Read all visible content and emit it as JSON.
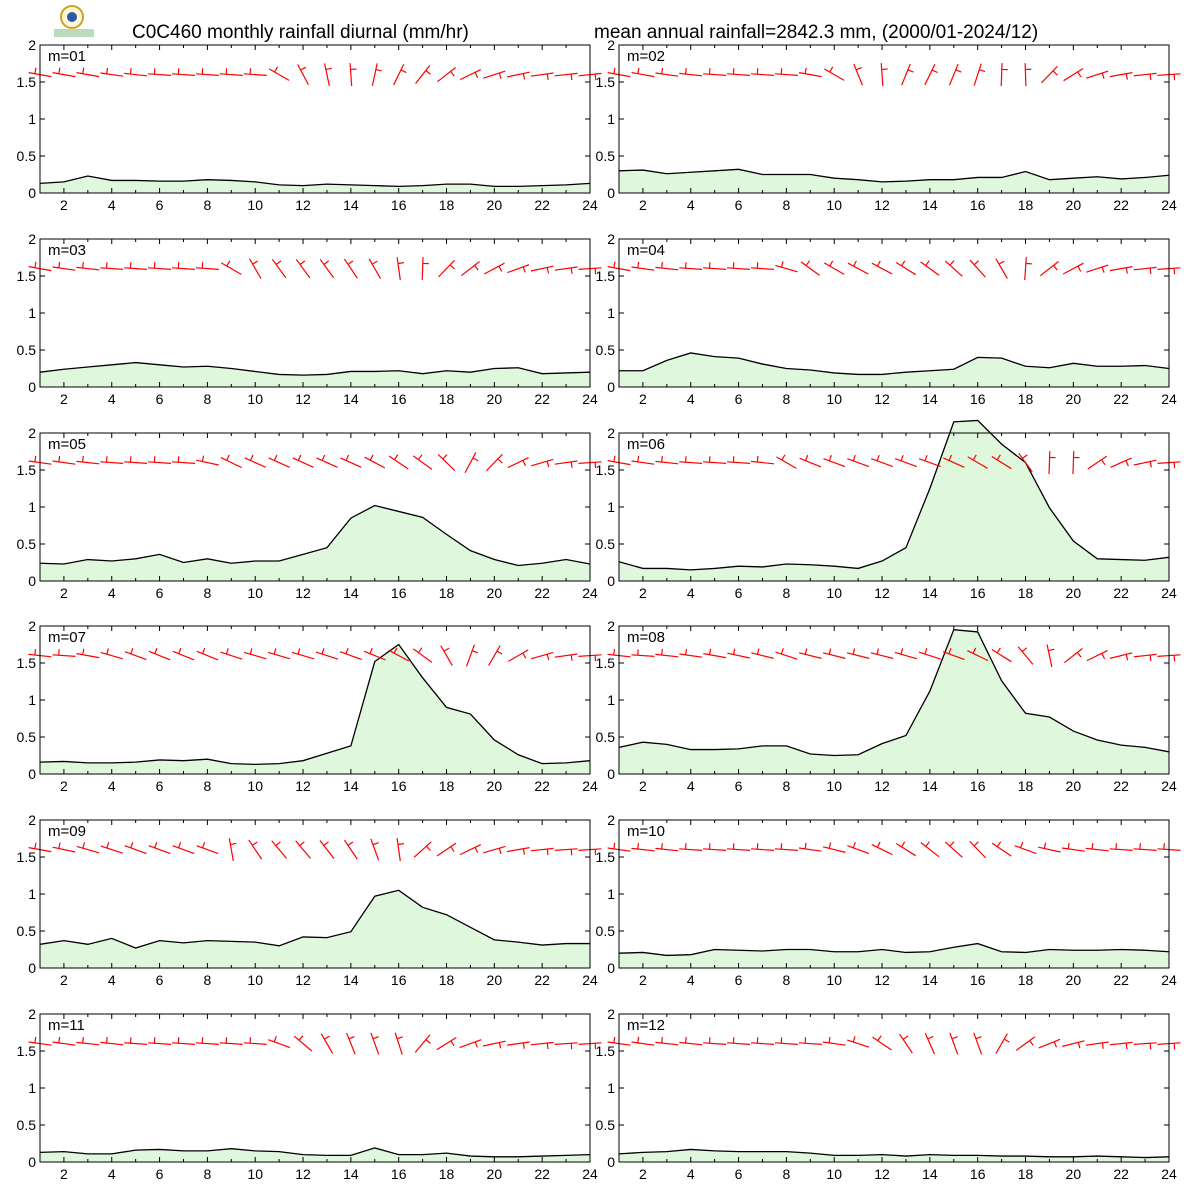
{
  "header": {
    "title_left": "C0C460 monthly rainfall diurnal (mm/hr)",
    "title_right": "mean annual rainfall=2842.3 mm, (2000/01-2024/12)"
  },
  "colors": {
    "fill": "#dff7dc",
    "line": "#000000",
    "wind": "#ff0000",
    "logo_ring": "#c9a227",
    "logo_blue": "#2a5aa8",
    "logo_green": "#3b9a3b"
  },
  "chart_data": {
    "type": "area",
    "ylim": [
      0,
      2
    ],
    "y_ticks": [
      "0",
      "0.5",
      "1",
      "1.5",
      "2"
    ],
    "xlim": [
      1,
      24
    ],
    "x_ticks": [
      "2",
      "4",
      "6",
      "8",
      "10",
      "12",
      "14",
      "16",
      "18",
      "20",
      "22",
      "24"
    ],
    "hours": [
      1,
      2,
      3,
      4,
      5,
      6,
      7,
      8,
      9,
      10,
      11,
      12,
      13,
      14,
      15,
      16,
      17,
      18,
      19,
      20,
      21,
      22,
      23,
      24
    ],
    "wind_glyph_level": 1.6,
    "panels": [
      {
        "label": "m=01",
        "values": [
          0.13,
          0.15,
          0.23,
          0.17,
          0.17,
          0.16,
          0.16,
          0.18,
          0.17,
          0.15,
          0.11,
          0.1,
          0.12,
          0.11,
          0.1,
          0.09,
          0.1,
          0.12,
          0.12,
          0.09,
          0.09,
          0.1,
          0.11,
          0.13
        ],
        "wind_dir": [
          -80,
          -80,
          -80,
          -82,
          -84,
          -86,
          -86,
          -86,
          -86,
          -86,
          -60,
          -28,
          -12,
          -4,
          12,
          26,
          38,
          52,
          64,
          72,
          78,
          82,
          84,
          84
        ]
      },
      {
        "label": "m=02",
        "values": [
          0.3,
          0.31,
          0.26,
          0.28,
          0.3,
          0.32,
          0.25,
          0.25,
          0.25,
          0.2,
          0.18,
          0.15,
          0.16,
          0.18,
          0.18,
          0.21,
          0.21,
          0.29,
          0.18,
          0.2,
          0.22,
          0.19,
          0.21,
          0.24
        ],
        "wind_dir": [
          -80,
          -80,
          -82,
          -84,
          -86,
          -86,
          -86,
          -86,
          -80,
          -60,
          -22,
          -4,
          22,
          26,
          22,
          18,
          2,
          -2,
          44,
          58,
          72,
          80,
          84,
          86
        ]
      },
      {
        "label": "m=03",
        "values": [
          0.2,
          0.24,
          0.27,
          0.3,
          0.33,
          0.3,
          0.27,
          0.28,
          0.25,
          0.21,
          0.17,
          0.16,
          0.17,
          0.21,
          0.21,
          0.22,
          0.18,
          0.22,
          0.2,
          0.25,
          0.26,
          0.18,
          0.19,
          0.2
        ],
        "wind_dir": [
          -80,
          -82,
          -84,
          -86,
          -86,
          -86,
          -86,
          -86,
          -60,
          -30,
          -36,
          -36,
          -36,
          -34,
          -30,
          -8,
          2,
          44,
          52,
          62,
          70,
          78,
          82,
          86
        ]
      },
      {
        "label": "m=04",
        "values": [
          0.22,
          0.22,
          0.36,
          0.46,
          0.41,
          0.39,
          0.31,
          0.25,
          0.23,
          0.19,
          0.17,
          0.17,
          0.2,
          0.22,
          0.24,
          0.4,
          0.39,
          0.28,
          0.26,
          0.32,
          0.28,
          0.28,
          0.29,
          0.25
        ],
        "wind_dir": [
          -80,
          -82,
          -84,
          -86,
          -86,
          -86,
          -86,
          -74,
          -54,
          -60,
          -62,
          -62,
          -58,
          -54,
          -48,
          -42,
          -30,
          4,
          52,
          62,
          72,
          80,
          84,
          86
        ]
      },
      {
        "label": "m=05",
        "values": [
          0.24,
          0.23,
          0.29,
          0.27,
          0.3,
          0.36,
          0.25,
          0.3,
          0.24,
          0.27,
          0.27,
          0.36,
          0.45,
          0.85,
          1.02,
          0.94,
          0.86,
          0.63,
          0.41,
          0.29,
          0.21,
          0.24,
          0.29,
          0.23
        ],
        "wind_dir": [
          -82,
          -82,
          -84,
          -86,
          -86,
          -86,
          -86,
          -78,
          -64,
          -66,
          -66,
          -66,
          -66,
          -66,
          -62,
          -56,
          -54,
          -46,
          28,
          44,
          64,
          74,
          82,
          86
        ]
      },
      {
        "label": "m=06",
        "values": [
          0.26,
          0.17,
          0.17,
          0.15,
          0.17,
          0.2,
          0.19,
          0.23,
          0.22,
          0.2,
          0.17,
          0.27,
          0.45,
          1.25,
          2.15,
          2.17,
          1.85,
          1.6,
          0.99,
          0.54,
          0.3,
          0.29,
          0.28,
          0.32
        ],
        "wind_dir": [
          -80,
          -82,
          -84,
          -86,
          -86,
          -86,
          -84,
          -60,
          -68,
          -70,
          -70,
          -70,
          -70,
          -70,
          -66,
          -60,
          -58,
          -36,
          2,
          2,
          56,
          66,
          78,
          86
        ]
      },
      {
        "label": "m=07",
        "values": [
          0.16,
          0.17,
          0.15,
          0.15,
          0.16,
          0.19,
          0.18,
          0.2,
          0.14,
          0.13,
          0.14,
          0.18,
          0.28,
          0.38,
          1.52,
          1.75,
          1.3,
          0.9,
          0.81,
          0.46,
          0.26,
          0.14,
          0.15,
          0.18
        ],
        "wind_dir": [
          -84,
          -86,
          -80,
          -74,
          -70,
          -68,
          -68,
          -68,
          -72,
          -74,
          -74,
          -74,
          -72,
          -70,
          -68,
          -62,
          -54,
          -30,
          20,
          30,
          60,
          74,
          82,
          86
        ]
      },
      {
        "label": "m=08",
        "values": [
          0.36,
          0.43,
          0.4,
          0.33,
          0.33,
          0.34,
          0.38,
          0.38,
          0.27,
          0.25,
          0.26,
          0.41,
          0.52,
          1.12,
          1.95,
          1.92,
          1.26,
          0.82,
          0.77,
          0.58,
          0.46,
          0.39,
          0.36,
          0.3
        ],
        "wind_dir": [
          -84,
          -86,
          -84,
          -82,
          -80,
          -78,
          -76,
          -72,
          -76,
          -76,
          -76,
          -76,
          -74,
          -72,
          -70,
          -64,
          -58,
          -40,
          -12,
          52,
          64,
          76,
          84,
          86
        ]
      },
      {
        "label": "m=09",
        "values": [
          0.32,
          0.37,
          0.32,
          0.4,
          0.27,
          0.37,
          0.34,
          0.37,
          0.36,
          0.35,
          0.3,
          0.42,
          0.41,
          0.49,
          0.97,
          1.05,
          0.82,
          0.72,
          0.55,
          0.38,
          0.35,
          0.31,
          0.33,
          0.33
        ],
        "wind_dir": [
          -80,
          -78,
          -74,
          -72,
          -70,
          -70,
          -70,
          -70,
          -10,
          -34,
          -40,
          -40,
          -38,
          -34,
          -20,
          -8,
          48,
          56,
          64,
          74,
          80,
          84,
          86,
          86
        ]
      },
      {
        "label": "m=10",
        "values": [
          0.2,
          0.21,
          0.17,
          0.18,
          0.25,
          0.24,
          0.23,
          0.25,
          0.25,
          0.22,
          0.22,
          0.25,
          0.21,
          0.22,
          0.28,
          0.33,
          0.22,
          0.21,
          0.25,
          0.24,
          0.24,
          0.25,
          0.24,
          0.22
        ],
        "wind_dir": [
          -82,
          -84,
          -84,
          -86,
          -86,
          -86,
          -86,
          -86,
          -82,
          -76,
          -70,
          -64,
          -58,
          -52,
          -48,
          -44,
          -56,
          -70,
          -78,
          -82,
          -84,
          -86,
          -86,
          -86
        ]
      },
      {
        "label": "m=11",
        "values": [
          0.13,
          0.14,
          0.11,
          0.11,
          0.16,
          0.17,
          0.15,
          0.15,
          0.18,
          0.15,
          0.14,
          0.1,
          0.09,
          0.09,
          0.19,
          0.1,
          0.1,
          0.12,
          0.08,
          0.07,
          0.07,
          0.08,
          0.09,
          0.1
        ],
        "wind_dir": [
          -82,
          -82,
          -84,
          -84,
          -86,
          -86,
          -86,
          -86,
          -86,
          -86,
          -70,
          -50,
          -30,
          -22,
          -20,
          -18,
          40,
          58,
          70,
          78,
          82,
          84,
          86,
          86
        ]
      },
      {
        "label": "m=12",
        "values": [
          0.11,
          0.13,
          0.14,
          0.17,
          0.15,
          0.14,
          0.14,
          0.14,
          0.12,
          0.09,
          0.09,
          0.1,
          0.08,
          0.1,
          0.09,
          0.09,
          0.08,
          0.08,
          0.07,
          0.07,
          0.08,
          0.07,
          0.06,
          0.07
        ],
        "wind_dir": [
          -82,
          -82,
          -84,
          -84,
          -86,
          -86,
          -86,
          -86,
          -86,
          -82,
          -72,
          -56,
          -34,
          -24,
          -20,
          -20,
          30,
          54,
          68,
          76,
          82,
          84,
          86,
          86
        ]
      }
    ]
  }
}
